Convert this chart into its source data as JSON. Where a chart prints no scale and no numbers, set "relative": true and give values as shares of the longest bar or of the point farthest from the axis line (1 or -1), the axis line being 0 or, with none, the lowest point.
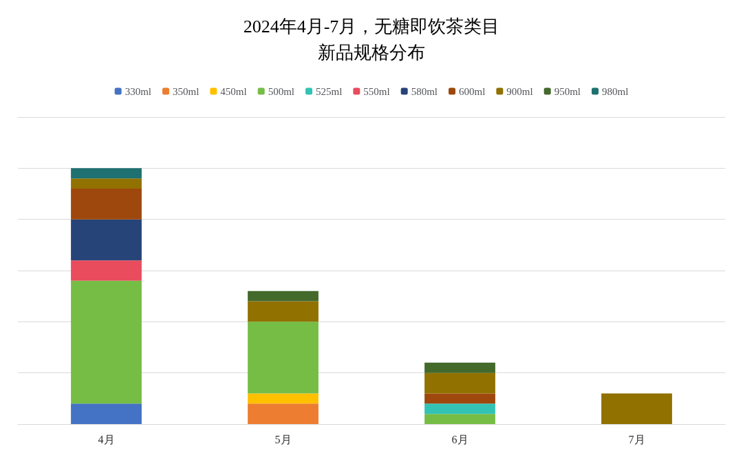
{
  "chart_data": {
    "type": "bar",
    "title": "2024年4月-7月，无糖即饮茶类目",
    "subtitle": "新品规格分布",
    "categories": [
      "4月",
      "5月",
      "6月",
      "7月"
    ],
    "stacked": true,
    "relative": true,
    "grid": "y",
    "legend": "top",
    "series": [
      {
        "name": "330ml",
        "color": "#4472c4",
        "values": [
          0.08,
          null,
          null,
          null
        ]
      },
      {
        "name": "350ml",
        "color": "#ed7d31",
        "values": [
          null,
          0.08,
          null,
          null
        ]
      },
      {
        "name": "450ml",
        "color": "#ffc000",
        "values": [
          null,
          0.04,
          null,
          null
        ]
      },
      {
        "name": "500ml",
        "color": "#76bd45",
        "values": [
          0.48,
          0.28,
          0.04,
          null
        ]
      },
      {
        "name": "525ml",
        "color": "#33c3b5",
        "values": [
          null,
          null,
          0.04,
          null
        ]
      },
      {
        "name": "550ml",
        "color": "#e84c5d",
        "values": [
          0.08,
          null,
          null,
          null
        ]
      },
      {
        "name": "580ml",
        "color": "#264478",
        "values": [
          0.16,
          null,
          null,
          null
        ]
      },
      {
        "name": "600ml",
        "color": "#9e480e",
        "values": [
          0.12,
          null,
          0.04,
          null
        ]
      },
      {
        "name": "900ml",
        "color": "#917100",
        "values": [
          0.04,
          0.08,
          0.08,
          0.12
        ]
      },
      {
        "name": "950ml",
        "color": "#43692b",
        "values": [
          null,
          0.04,
          0.04,
          null
        ]
      },
      {
        "name": "980ml",
        "color": "#1e7170",
        "values": [
          0.04,
          null,
          null,
          null
        ]
      }
    ]
  }
}
